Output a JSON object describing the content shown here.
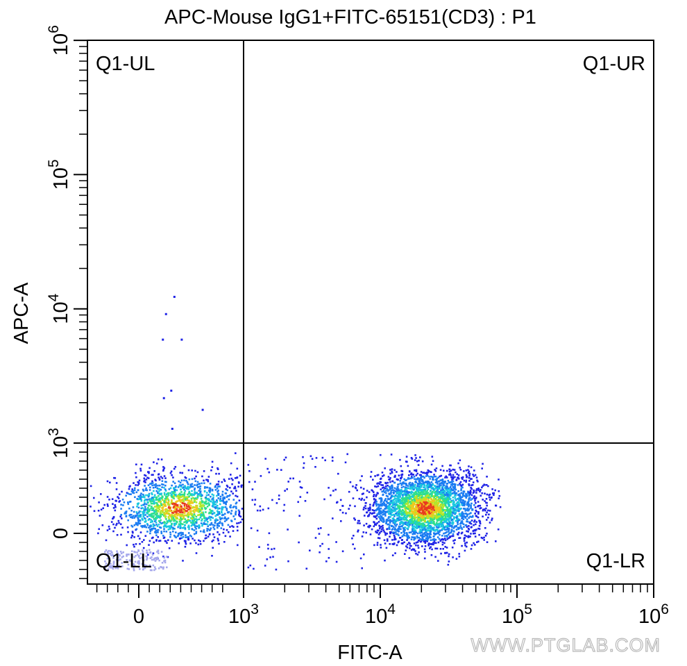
{
  "chart_data": {
    "type": "scatter",
    "title": "APC-Mouse IgG1+FITC-65151(CD3) : P1",
    "xlabel": "FITC-A",
    "ylabel": "APC-A",
    "x_scale": "biexponential",
    "y_scale": "biexponential",
    "x_ticks": [
      {
        "value": 0,
        "base": "0",
        "exp": ""
      },
      {
        "value": 1000,
        "base": "10",
        "exp": "3"
      },
      {
        "value": 10000,
        "base": "10",
        "exp": "4"
      },
      {
        "value": 100000,
        "base": "10",
        "exp": "5"
      },
      {
        "value": 1000000,
        "base": "10",
        "exp": "6"
      }
    ],
    "y_ticks": [
      {
        "value": 0,
        "base": "0",
        "exp": ""
      },
      {
        "value": 1000,
        "base": "10",
        "exp": "3"
      },
      {
        "value": 10000,
        "base": "10",
        "exp": "4"
      },
      {
        "value": 100000,
        "base": "10",
        "exp": "5"
      },
      {
        "value": 1000000,
        "base": "10",
        "exp": "6"
      }
    ],
    "quadrant_gate": {
      "x": 1000,
      "y": 1000
    },
    "quadrant_labels": {
      "upper_left": "Q1-UL",
      "upper_right": "Q1-UR",
      "lower_left": "Q1-LL",
      "lower_right": "Q1-LR"
    },
    "populations": [
      {
        "quadrant": "lower_left",
        "x_center": 180,
        "y_center": 120,
        "description_color": "#1a2ee0"
      },
      {
        "quadrant": "lower_right",
        "x_center": 20000,
        "y_center": 120,
        "description_color": "#1a2ee0"
      }
    ],
    "outliers": [
      {
        "x": 330,
        "y": 12500
      },
      {
        "x": 250,
        "y": 9300
      },
      {
        "x": 220,
        "y": 6000
      },
      {
        "x": 400,
        "y": 6000
      },
      {
        "x": 300,
        "y": 2500
      },
      {
        "x": 230,
        "y": 2200
      },
      {
        "x": 600,
        "y": 1800
      },
      {
        "x": 310,
        "y": 1300
      }
    ],
    "density_colors": [
      "#1e22e6",
      "#1b7cf2",
      "#19c8e0",
      "#2ee08a",
      "#b4e62a",
      "#f0c81e",
      "#e83a1e"
    ],
    "grid": false,
    "legend": "none"
  },
  "watermark": "WWW.PTGLAB.COM"
}
